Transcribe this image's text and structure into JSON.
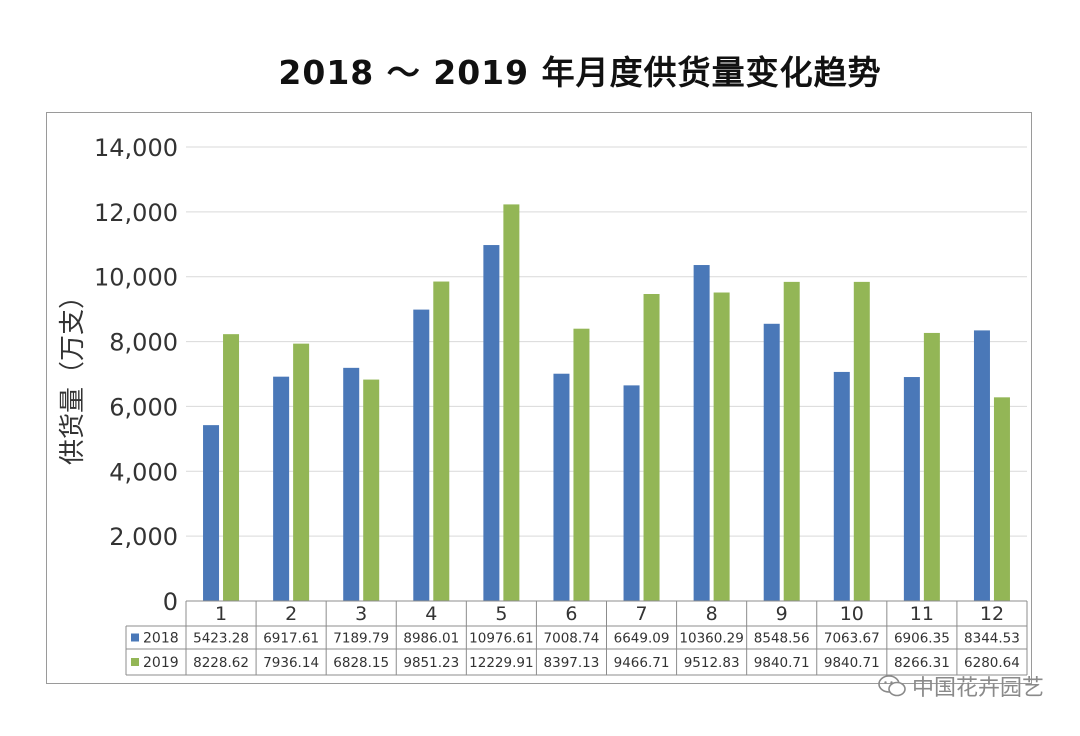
{
  "colors": {
    "series_2018": "#4a78b8",
    "series_2019": "#93b656",
    "grid": "#d9d9d9",
    "axis": "#8c8c8c"
  },
  "watermark": {
    "text": "中国花卉园艺",
    "icon": "wechat-icon"
  },
  "chart_data": {
    "type": "bar",
    "title": "2018 ～ 2019 年月度供货量变化趋势",
    "ylabel": "供货量（万支）",
    "xlabel": "",
    "ylim": [
      0,
      14000
    ],
    "yticks": [
      0,
      2000,
      4000,
      6000,
      8000,
      10000,
      12000,
      14000
    ],
    "ytick_labels": [
      "0",
      "2,000",
      "4,000",
      "6,000",
      "8,000",
      "10,000",
      "12,000",
      "14,000"
    ],
    "grid": true,
    "legend": "data-table",
    "categories": [
      "1",
      "2",
      "3",
      "4",
      "5",
      "6",
      "7",
      "8",
      "9",
      "10",
      "11",
      "12"
    ],
    "series": [
      {
        "name": "2018",
        "values": [
          5423.28,
          6917.61,
          7189.79,
          8986.01,
          10976.61,
          7008.74,
          6649.09,
          10360.29,
          8548.56,
          7063.67,
          6906.35,
          8344.53
        ],
        "labels": [
          "5423.28",
          "6917.61",
          "7189.79",
          "8986.01",
          "10976.61",
          "7008.74",
          "6649.09",
          "10360.29",
          "8548.56",
          "7063.67",
          "6906.35",
          "8344.53"
        ]
      },
      {
        "name": "2019",
        "values": [
          8228.62,
          7936.14,
          6828.15,
          9851.23,
          12229.91,
          8397.13,
          9466.71,
          9512.83,
          9840.71,
          9840.71,
          8266.31,
          6280.64
        ],
        "labels": [
          "8228.62",
          "7936.14",
          "6828.15",
          "9851.23",
          "12229.91",
          "8397.13",
          "9466.71",
          "9512.83",
          "9840.71",
          "9840.71",
          "8266.31",
          "6280.64"
        ]
      }
    ]
  }
}
